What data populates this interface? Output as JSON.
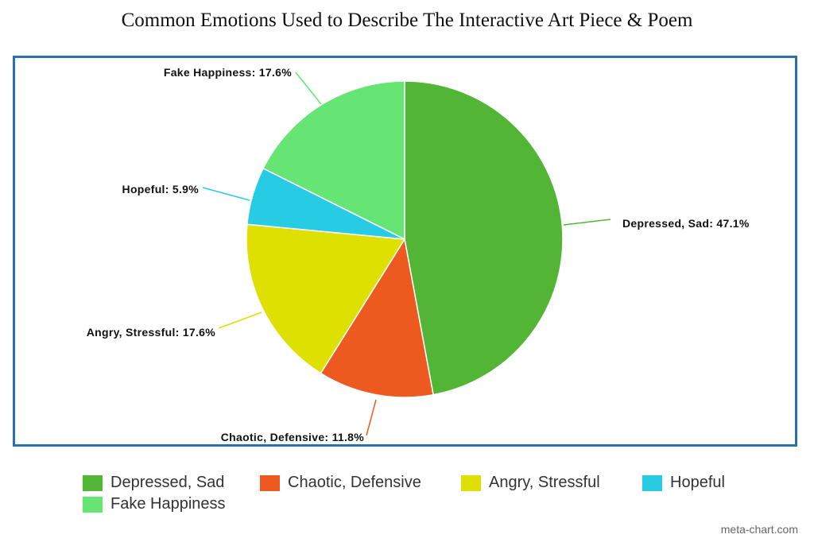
{
  "chart_data": {
    "type": "pie",
    "title": "Common Emotions Used to Describe The Interactive Art Piece & Poem",
    "categories": [
      "Depressed, Sad",
      "Chaotic, Defensive",
      "Angry, Stressful",
      "Hopeful",
      "Fake Happiness"
    ],
    "values": [
      47.1,
      11.8,
      17.6,
      5.9,
      17.6
    ],
    "labels": [
      "Depressed, Sad: 47.1%",
      "Chaotic, Defensive: 11.8%",
      "Angry, Stressful: 17.6%",
      "Hopeful: 5.9%",
      "Fake Happiness: 17.6%"
    ],
    "colors": [
      "#52b536",
      "#ec5a1f",
      "#dde000",
      "#27cbe4",
      "#66e474"
    ],
    "legend_placement": "bottom"
  },
  "credit": "meta-chart.com"
}
